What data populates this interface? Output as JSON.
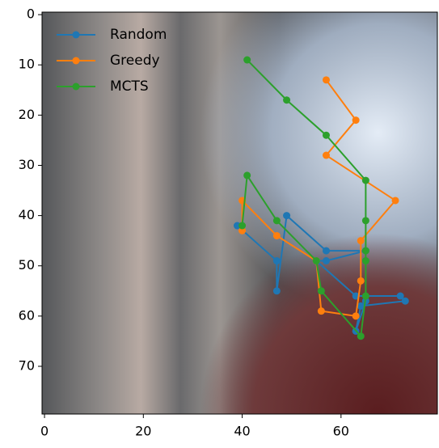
{
  "chart_data": {
    "type": "line",
    "legend": "upper left",
    "xlim": [
      -0.5,
      79.5
    ],
    "ylim": [
      79.5,
      -0.5
    ],
    "xticks": [
      0,
      20,
      40,
      60
    ],
    "yticks": [
      0,
      10,
      20,
      30,
      40,
      50,
      60,
      70
    ],
    "series": [
      {
        "name": "Random",
        "color": "#1f77b4",
        "x": [
          39,
          47,
          47,
          49,
          57,
          65,
          57,
          55,
          63,
          72,
          73,
          64,
          63,
          65
        ],
        "values": [
          42,
          49,
          55,
          40,
          47,
          47,
          49,
          49,
          56,
          56,
          57,
          58,
          63,
          57
        ]
      },
      {
        "name": "Greedy",
        "color": "#ff7f0e",
        "x": [
          40,
          40,
          47,
          55,
          56,
          63,
          64,
          64,
          71,
          57,
          63,
          57
        ],
        "values": [
          43,
          37,
          44,
          49,
          59,
          60,
          53,
          45,
          37,
          28,
          21,
          13
        ]
      },
      {
        "name": "MCTS",
        "color": "#2ca02c",
        "x": [
          41,
          49,
          57,
          65,
          65,
          65,
          65,
          65,
          64,
          56,
          55,
          47,
          41,
          40
        ],
        "values": [
          9,
          17,
          24,
          33,
          41,
          47,
          49,
          56,
          64,
          55,
          49,
          41,
          32,
          42
        ]
      }
    ]
  }
}
